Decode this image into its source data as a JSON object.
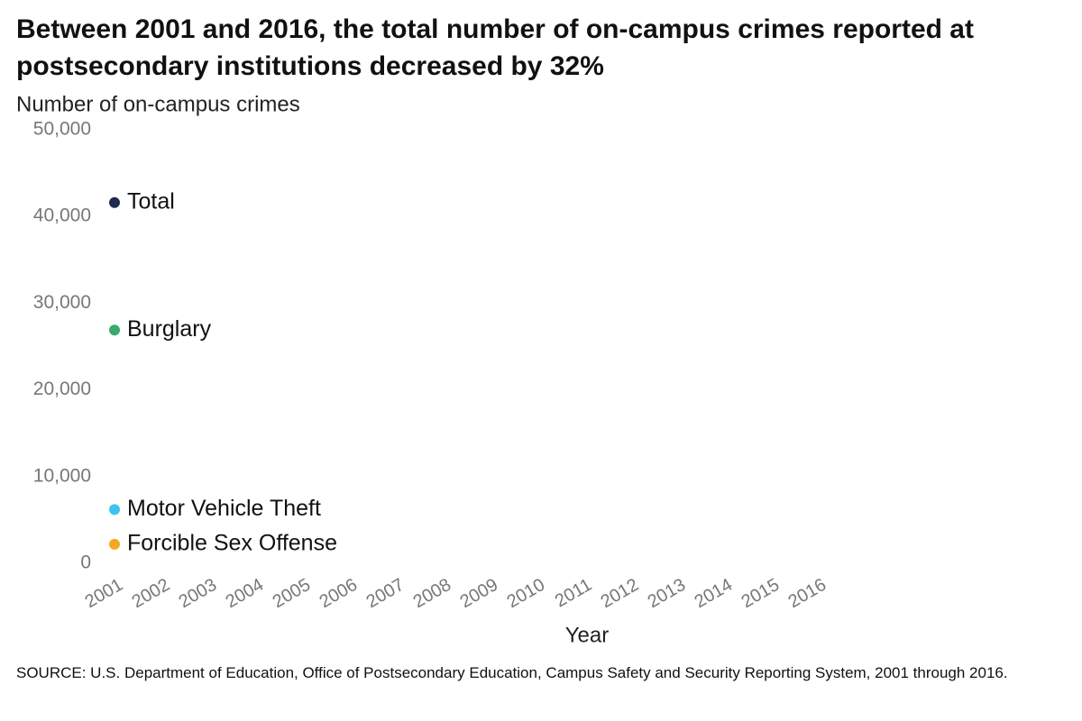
{
  "chart_data": {
    "type": "line",
    "title": "Between 2001 and 2016, the total number of on-campus crimes reported at postsecondary institutions decreased by 32%",
    "y_label": "Number of on-campus crimes",
    "x_label": "Year",
    "source": "SOURCE: U.S. Department of Education, Office of Postsecondary Education, Campus Safety and Security Reporting System, 2001 through 2016.",
    "categories": [
      "2001",
      "2002",
      "2003",
      "2004",
      "2005",
      "2006",
      "2007",
      "2008",
      "2009",
      "2010",
      "2011",
      "2012",
      "2013",
      "2014",
      "2015",
      "2016"
    ],
    "series": [
      {
        "name": "Total",
        "color": "#1f2a4e",
        "values": [
          41600,
          null,
          null,
          null,
          null,
          null,
          null,
          null,
          null,
          null,
          null,
          null,
          null,
          null,
          null,
          null
        ]
      },
      {
        "name": "Burglary",
        "color": "#3aaa6a",
        "values": [
          26900,
          null,
          null,
          null,
          null,
          null,
          null,
          null,
          null,
          null,
          null,
          null,
          null,
          null,
          null,
          null
        ]
      },
      {
        "name": "Motor Vehicle Theft",
        "color": "#3ec3f0",
        "values": [
          6200,
          null,
          null,
          null,
          null,
          null,
          null,
          null,
          null,
          null,
          null,
          null,
          null,
          null,
          null,
          null
        ]
      },
      {
        "name": "Forcible Sex Offense",
        "color": "#f5a623",
        "values": [
          2200,
          null,
          null,
          null,
          null,
          null,
          null,
          null,
          null,
          null,
          null,
          null,
          null,
          null,
          null,
          null
        ]
      }
    ],
    "ylim": [
      0,
      50000
    ],
    "yticks": [
      0,
      {
        "value": 10000,
        "label": "10,000"
      },
      {
        "value": 20000,
        "label": "20,000"
      },
      {
        "value": 30000,
        "label": "30,000"
      },
      {
        "value": 40000,
        "label": "40,000"
      },
      {
        "value": 50000,
        "label": "50,000"
      }
    ],
    "grid": false
  }
}
